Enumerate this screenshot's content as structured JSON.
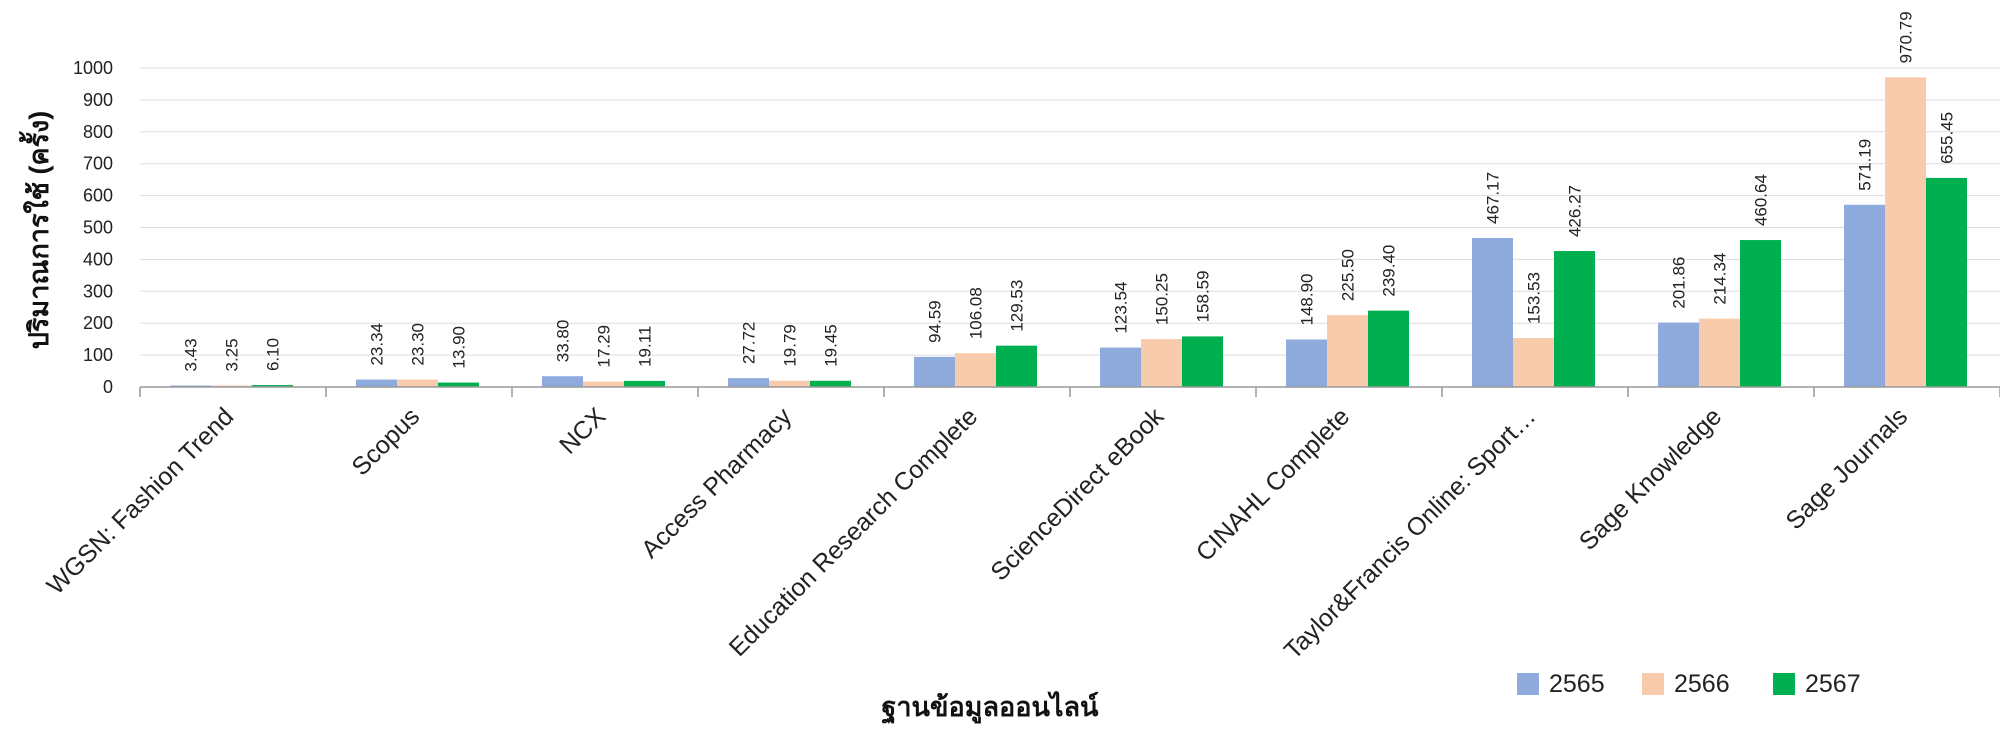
{
  "chart_data": {
    "type": "bar",
    "title": "",
    "xlabel": "ฐานข้อมูลออนไลน์",
    "ylabel": "ปริมาณการใช้ (ครั้ง)",
    "ylim": [
      0,
      1000
    ],
    "yticks": [
      0,
      100,
      200,
      300,
      400,
      500,
      600,
      700,
      800,
      900,
      1000
    ],
    "grid": true,
    "legend_position": "bottom-right",
    "categories": [
      "WGSN: Fashion Trend",
      "Scopus",
      "NCX",
      "Access Pharmacy",
      "Education Research Complete",
      "ScienceDirect eBook",
      "CINAHL Complete",
      "Taylor&Francis Online: Sport…",
      "Sage Knowledge",
      "Sage Journals"
    ],
    "series": [
      {
        "name": "2565",
        "color": "#8faadc",
        "values": [
          3.43,
          23.34,
          33.8,
          27.72,
          94.59,
          123.54,
          148.9,
          467.17,
          201.86,
          571.19
        ],
        "labels": [
          "3.43",
          "23.34",
          "33.80",
          "27.72",
          "94.59",
          "123.54",
          "148.90",
          "467.17",
          "201.86",
          "571.19"
        ]
      },
      {
        "name": "2566",
        "color": "#f8cbad",
        "values": [
          3.25,
          23.3,
          17.29,
          19.79,
          106.08,
          150.25,
          225.5,
          153.53,
          214.34,
          970.79
        ],
        "labels": [
          "3.25",
          "23.30",
          "17.29",
          "19.79",
          "106.08",
          "150.25",
          "225.50",
          "153.53",
          "214.34",
          "970.79"
        ]
      },
      {
        "name": "2567",
        "color": "#00b050",
        "values": [
          6.1,
          13.9,
          19.11,
          19.45,
          129.53,
          158.59,
          239.4,
          426.27,
          460.64,
          655.45
        ],
        "labels": [
          "6.10",
          "13.90",
          "19.11",
          "19.45",
          "129.53",
          "158.59",
          "239.40",
          "426.27",
          "460.64",
          "655.45"
        ]
      }
    ]
  }
}
